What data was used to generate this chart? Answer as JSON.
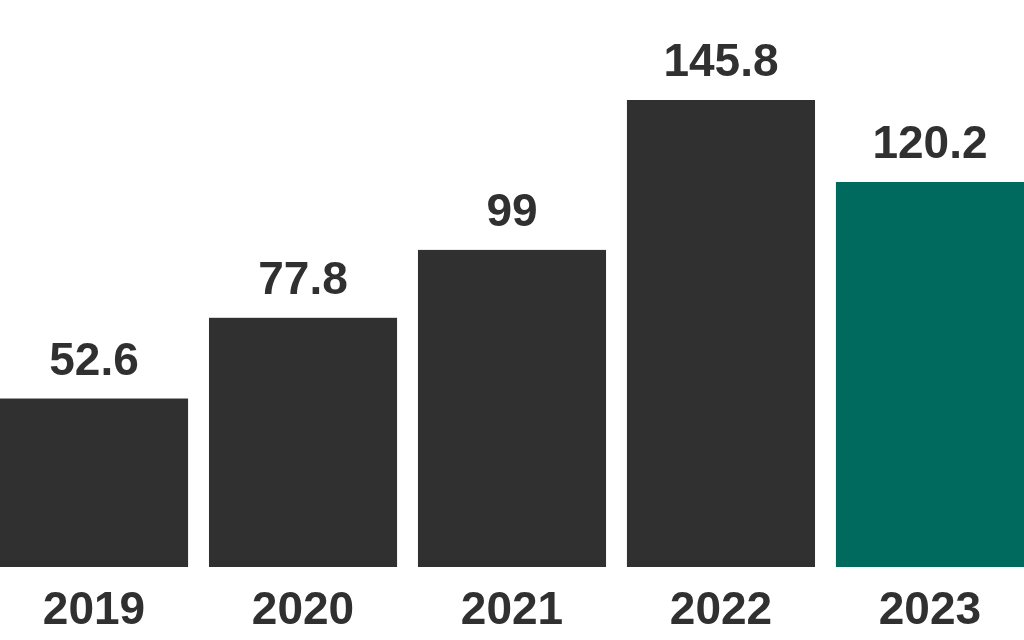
{
  "chart_data": {
    "type": "bar",
    "categories": [
      "2019",
      "2020",
      "2021",
      "2022",
      "2023"
    ],
    "values": [
      52.6,
      77.8,
      99,
      145.8,
      120.2
    ],
    "colors": [
      "#303030",
      "#303030",
      "#303030",
      "#303030",
      "#006a5f"
    ],
    "data_labels": true
  }
}
